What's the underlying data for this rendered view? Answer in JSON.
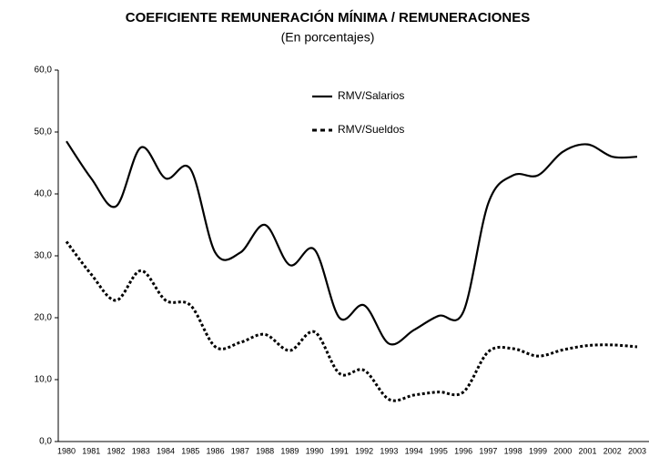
{
  "chart_data": {
    "type": "line",
    "title": "COEFICIENTE REMUNERACIÓN MÍNIMA / REMUNERACIONES",
    "subtitle": "(En porcentajes)",
    "categories": [
      "1980",
      "1981",
      "1982",
      "1983",
      "1984",
      "1985",
      "1986",
      "1987",
      "1988",
      "1989",
      "1990",
      "1991",
      "1992",
      "1993",
      "1994",
      "1995",
      "1996",
      "1997",
      "1998",
      "1999",
      "2000",
      "2001",
      "2002",
      "2003"
    ],
    "series": [
      {
        "name": "RMV/Salarios",
        "color": "#000000",
        "dash": false,
        "values": [
          48.5,
          42.5,
          38,
          47.5,
          42.5,
          44,
          30.5,
          30.5,
          35,
          28.5,
          31,
          20,
          22,
          15.8,
          18,
          20.3,
          21,
          38.5,
          43,
          43,
          46.8,
          48,
          46,
          46
        ]
      },
      {
        "name": "RMV/Sueldos",
        "color": "#000000",
        "dash": true,
        "values": [
          32.3,
          27,
          22.8,
          27.6,
          22.8,
          22,
          15.3,
          16,
          17.3,
          14.7,
          17.7,
          11,
          11.5,
          6.8,
          7.5,
          8,
          8,
          14.5,
          15,
          13.8,
          14.8,
          15.5,
          15.6,
          15.3
        ]
      }
    ],
    "ylim": [
      0,
      60
    ],
    "yticks": [
      {
        "value": 0,
        "label": "0,0"
      },
      {
        "value": 10,
        "label": "10,0"
      },
      {
        "value": 20,
        "label": "20,0"
      },
      {
        "value": 30,
        "label": "30,0"
      },
      {
        "value": 40,
        "label": "40,0"
      },
      {
        "value": 50,
        "label": "50,0"
      },
      {
        "value": 60,
        "label": "60,0"
      }
    ],
    "legend": "top-center",
    "grid": false
  }
}
